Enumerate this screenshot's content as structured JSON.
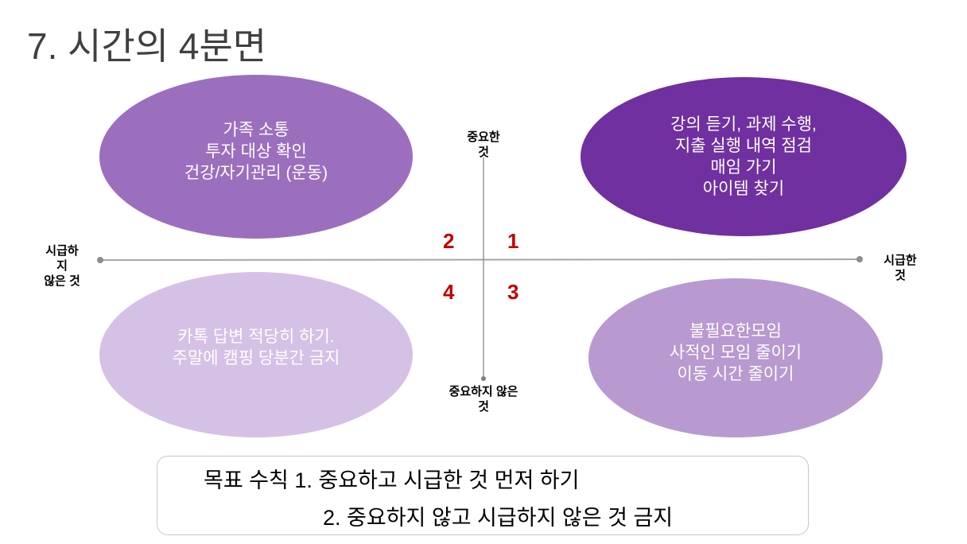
{
  "title": "7. 시간의 4분면",
  "colors": {
    "q1": "#7030a0",
    "q2": "#9b6fbd",
    "q3": "#b899d0",
    "q4": "#d5c1e6",
    "quadrant_number": "#c00000"
  },
  "axes": {
    "top": [
      "중요한",
      "것"
    ],
    "bottom": [
      "중요하지 않은",
      "것"
    ],
    "left": [
      "시급하",
      "지",
      "않은 것"
    ],
    "right": [
      "시급한",
      "것"
    ]
  },
  "quadrants": {
    "q1": {
      "number": "1",
      "lines": [
        "강의 듣기, 과제 수행,",
        "지출 실행 내역 점검",
        "매임 가기",
        "아이템 찾기"
      ]
    },
    "q2": {
      "number": "2",
      "lines": [
        "가족 소통",
        "투자 대상 확인",
        "건강/자기관리 (운동)"
      ]
    },
    "q3": {
      "number": "3",
      "lines": [
        "불필요한모임",
        "사적인 모임 줄이기",
        "이동 시간 줄이기"
      ]
    },
    "q4": {
      "number": "4",
      "lines": [
        "카톡 답변 적당히 하기.",
        "주말에 캠핑 당분간 금지"
      ]
    }
  },
  "goal": {
    "line1": "목표 수칙 1. 중요하고 시급한 것 먼저 하기",
    "line2": "2. 중요하지 않고 시급하지 않은 것 금지"
  }
}
